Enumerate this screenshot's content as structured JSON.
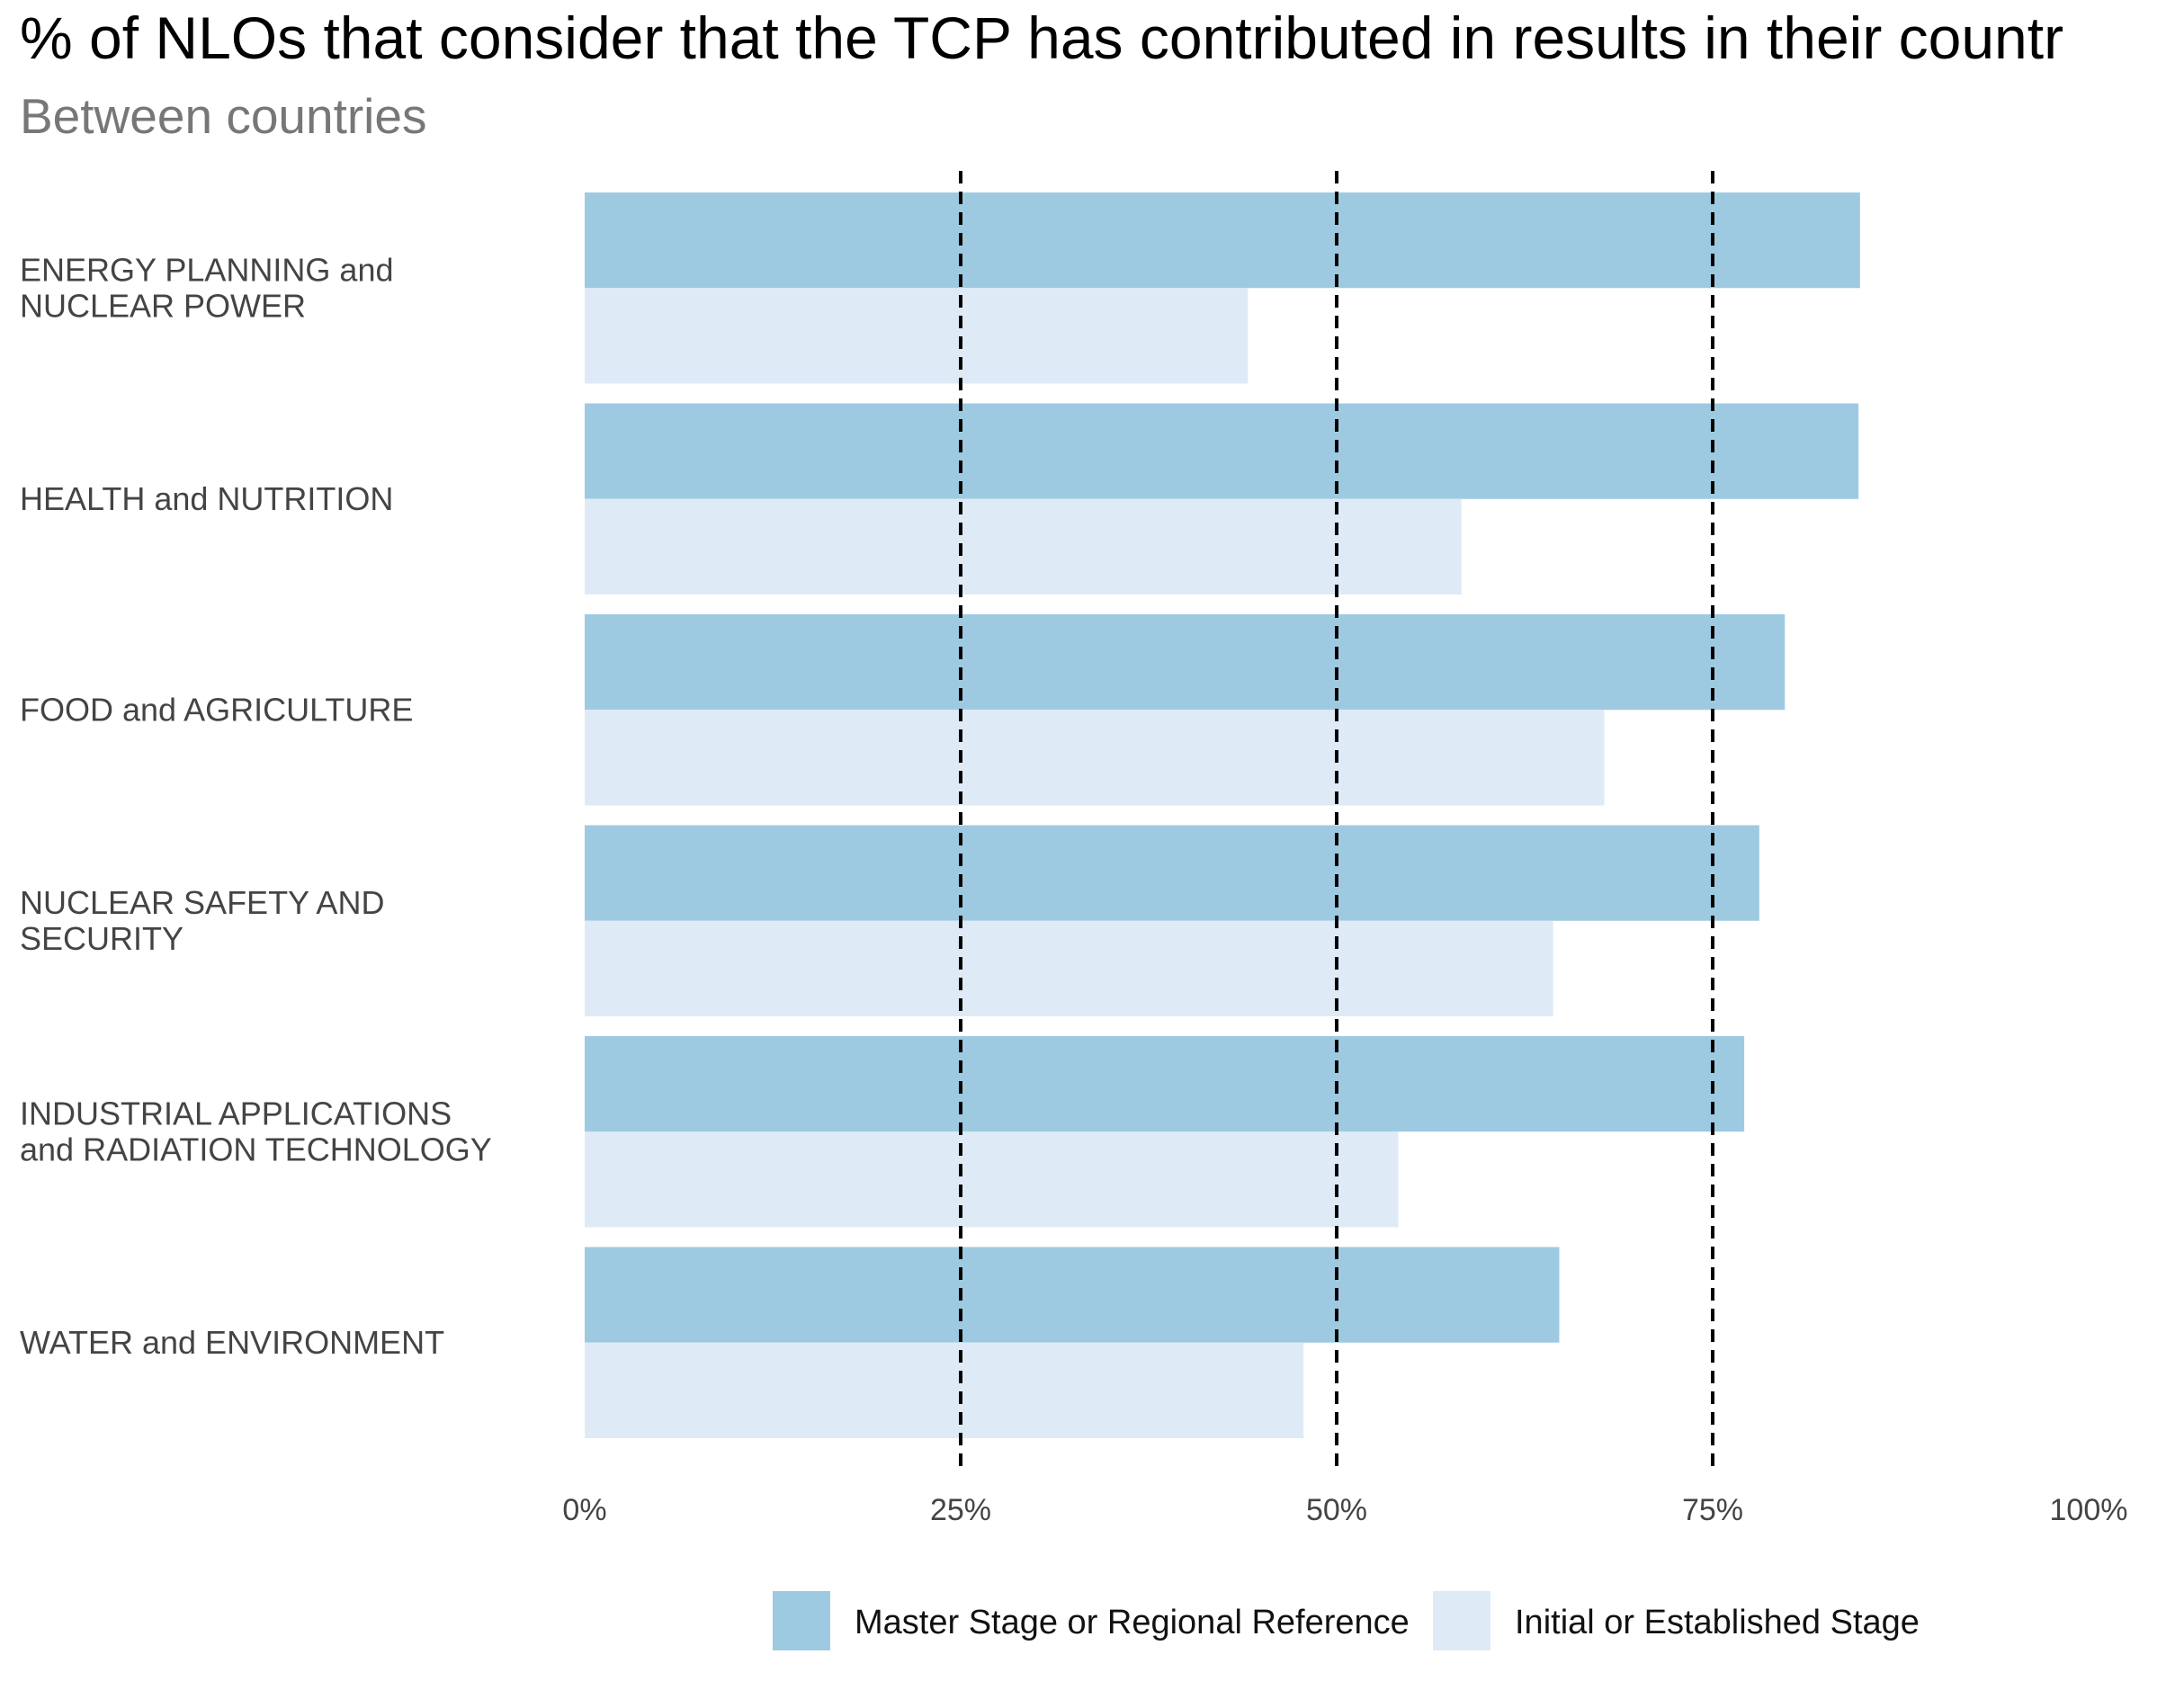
{
  "chart_data": {
    "type": "bar",
    "orientation": "horizontal",
    "title": "% of NLOs that consider that the TCP has contributed in results in their countr",
    "subtitle": "Between countries",
    "categories": [
      [
        "ENERGY PLANNING and",
        "NUCLEAR POWER"
      ],
      [
        "HEALTH and NUTRITION"
      ],
      [
        "FOOD and AGRICULTURE"
      ],
      [
        "NUCLEAR SAFETY AND",
        "SECURITY"
      ],
      [
        "INDUSTRIAL APPLICATIONS",
        "and RADIATION TECHNOLOGY"
      ],
      [
        "WATER and ENVIRONMENT"
      ]
    ],
    "series": [
      {
        "name": "Master Stage or Regional Reference",
        "color": "#9ecae1",
        "values": [
          84.8,
          84.7,
          79.8,
          78.1,
          77.1,
          64.8
        ]
      },
      {
        "name": "Initial or Established Stage",
        "color": "#deebf7",
        "values": [
          44.1,
          58.3,
          67.8,
          64.4,
          54.1,
          47.8
        ]
      }
    ],
    "xlim": [
      0,
      100
    ],
    "xticks": [
      0,
      25,
      50,
      75,
      100
    ],
    "xtick_labels": [
      "0%",
      "25%",
      "50%",
      "75%",
      "100%"
    ],
    "reference_lines": [
      25,
      50,
      75
    ],
    "xlabel": "",
    "ylabel": "",
    "grid": false,
    "legend_position": "bottom"
  }
}
